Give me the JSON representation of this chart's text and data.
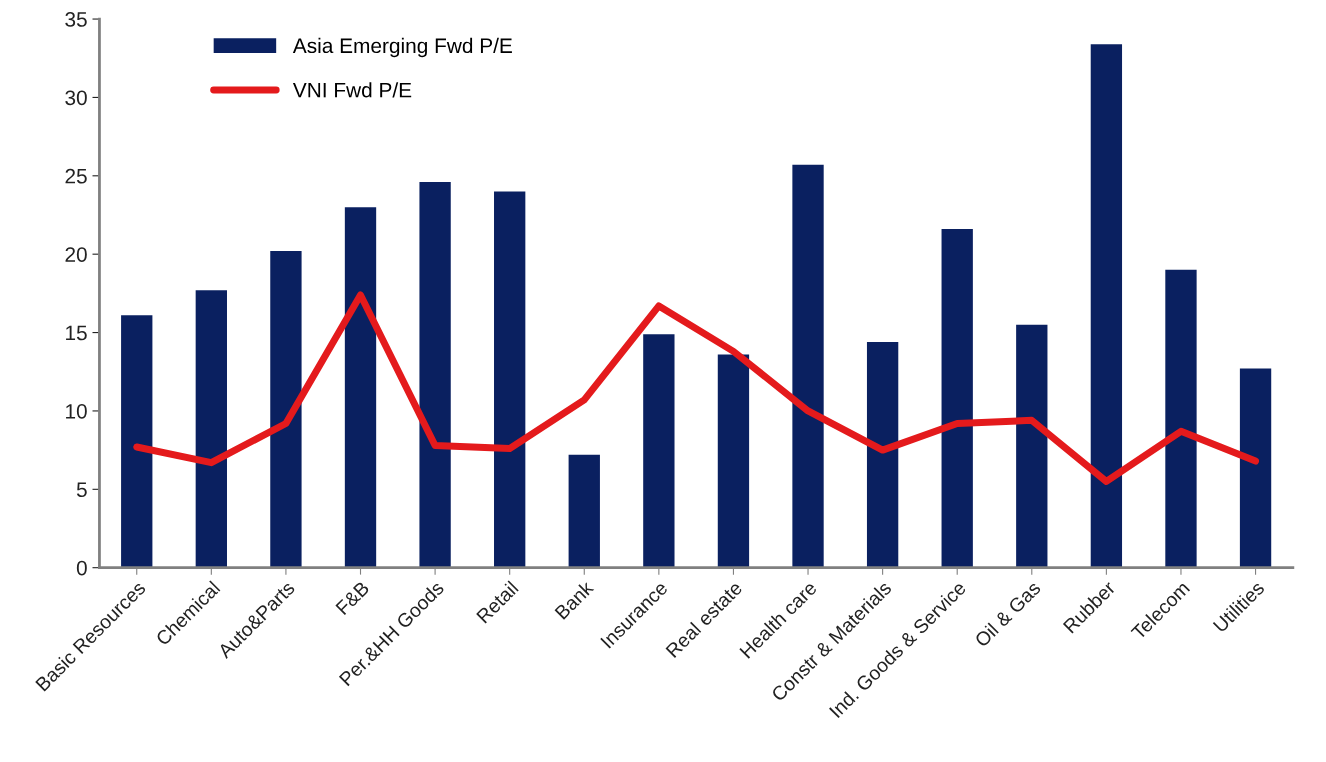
{
  "chart_data": {
    "type": "bar",
    "categories": [
      "Basic Resources",
      "Chemical",
      "Auto&Parts",
      "F&B",
      "Per.&HH Goods",
      "Retail",
      "Bank",
      "Insurance",
      "Real estate",
      "Health care",
      "Constr & Materials",
      "Ind. Goods & Service",
      "Oil & Gas",
      "Rubber",
      "Telecom",
      "Utilities"
    ],
    "series": [
      {
        "name": "Asia Emerging Fwd P/E",
        "color": "#0a2060",
        "values": [
          16.1,
          17.7,
          20.2,
          23.0,
          24.6,
          24.0,
          7.2,
          14.9,
          13.6,
          25.7,
          14.4,
          21.6,
          15.5,
          33.4,
          19.0,
          12.7
        ]
      },
      {
        "name": "VNI Fwd P/E",
        "type": "line",
        "color": "#e41a1c",
        "values": [
          7.7,
          6.7,
          9.2,
          17.4,
          7.8,
          7.6,
          10.7,
          16.7,
          13.8,
          10.0,
          7.5,
          9.2,
          9.4,
          5.5,
          8.7,
          6.8
        ]
      }
    ],
    "ylim": [
      0,
      35
    ],
    "yticks": [
      0,
      5,
      10,
      15,
      20,
      25,
      30,
      35
    ],
    "grid": false,
    "legend": "top left",
    "marker": "none",
    "line_style": "solid"
  }
}
